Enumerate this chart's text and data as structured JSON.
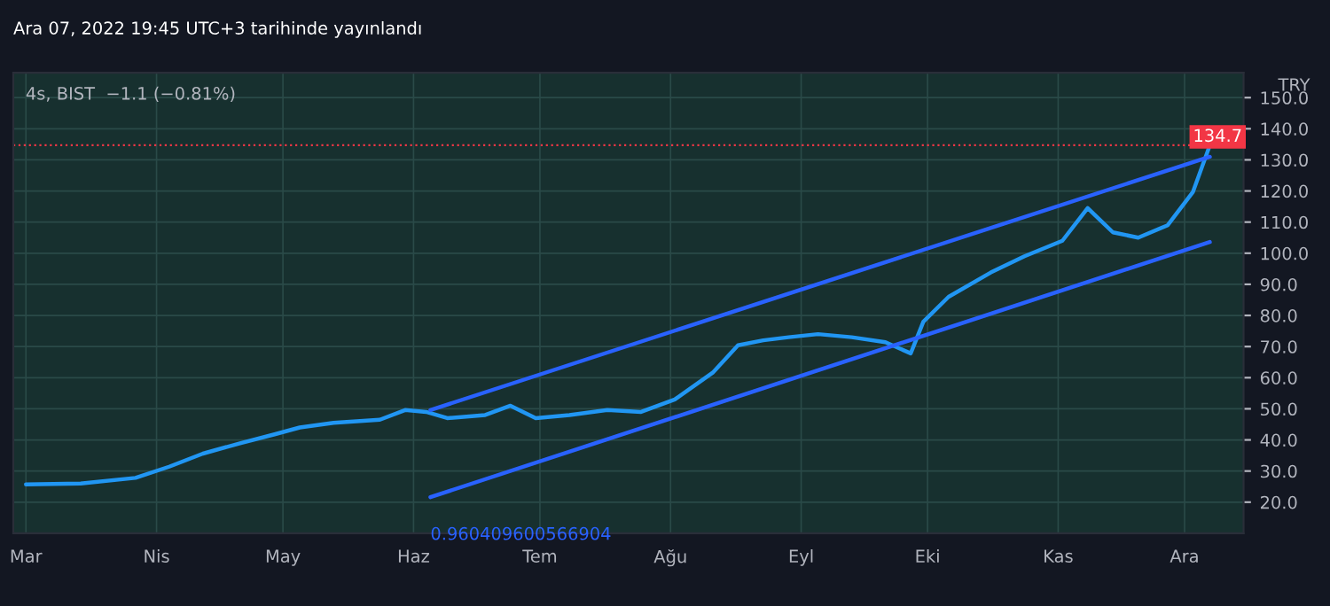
{
  "chart_data": {
    "type": "line",
    "title": "4s, BIST  −1.1 (−0.81%)",
    "subtitle": "Ara 07, 2022 19:45 UTC+3 tarihinde yayınlandı",
    "ylabel": "TRY",
    "series": [
      {
        "color": "#2196f3",
        "x": [
          "2022-03-01",
          "2022-03-14",
          "2022-03-27",
          "2022-04-04",
          "2022-04-12",
          "2022-04-21",
          "2022-04-29",
          "2022-05-05",
          "2022-05-13",
          "2022-05-24",
          "2022-05-30",
          "2022-06-04",
          "2022-06-09",
          "2022-06-18",
          "2022-06-24",
          "2022-06-30",
          "2022-07-08",
          "2022-07-17",
          "2022-07-25",
          "2022-08-02",
          "2022-08-11",
          "2022-08-17",
          "2022-08-23",
          "2022-08-29",
          "2022-09-05",
          "2022-09-13",
          "2022-09-21",
          "2022-09-27",
          "2022-09-30",
          "2022-10-06",
          "2022-10-16",
          "2022-10-24",
          "2022-11-02",
          "2022-11-08",
          "2022-11-14",
          "2022-11-20",
          "2022-11-27",
          "2022-12-03",
          "2022-12-07"
        ],
        "values": [
          25.7,
          26,
          27.8,
          31.4,
          35.6,
          39,
          41.8,
          44,
          45.5,
          46.5,
          49.6,
          49,
          47,
          48,
          51,
          47,
          48,
          49.6,
          49,
          53,
          61.6,
          70.4,
          72,
          73,
          74,
          73,
          71.4,
          67.8,
          78,
          86,
          93.8,
          99,
          104,
          114.5,
          106.7,
          105,
          109,
          119.7,
          134.7
        ]
      },
      {
        "type": "line",
        "color": "#2962ff",
        "x": [
          "2022-06-05",
          "2022-12-07"
        ],
        "values": [
          49.6,
          131
        ]
      },
      {
        "type": "line",
        "color": "#2962ff",
        "x": [
          "2022-06-05",
          "2022-12-07"
        ],
        "values": [
          21.6,
          103.6
        ]
      }
    ],
    "xlim": [
      "2022-02-26",
      "2022-12-15"
    ],
    "xticks": [
      {
        "value": "2022-03-01",
        "label": "Mar"
      },
      {
        "value": "2022-04-01",
        "label": "Nis"
      },
      {
        "value": "2022-05-01",
        "label": "May"
      },
      {
        "value": "2022-06-01",
        "label": "Haz"
      },
      {
        "value": "2022-07-01",
        "label": "Tem"
      },
      {
        "value": "2022-08-01",
        "label": "Ağu"
      },
      {
        "value": "2022-09-01",
        "label": "Eyl"
      },
      {
        "value": "2022-10-01",
        "label": "Eki"
      },
      {
        "value": "2022-11-01",
        "label": "Kas"
      },
      {
        "value": "2022-12-01",
        "label": "Ara"
      }
    ],
    "ylim": [
      10,
      158
    ],
    "yticks": [
      {
        "value": 20,
        "label": "20.0"
      },
      {
        "value": 30,
        "label": "30.0"
      },
      {
        "value": 40,
        "label": "40.0"
      },
      {
        "value": 50,
        "label": "50.0"
      },
      {
        "value": 60,
        "label": "60.0"
      },
      {
        "value": 70,
        "label": "70.0"
      },
      {
        "value": 80,
        "label": "80.0"
      },
      {
        "value": 90,
        "label": "90.0"
      },
      {
        "value": 100,
        "label": "100.0"
      },
      {
        "value": 110,
        "label": "110.0"
      },
      {
        "value": 120,
        "label": "120.0"
      },
      {
        "value": 130,
        "label": "130.0"
      },
      {
        "value": 140,
        "label": "140.0"
      },
      {
        "value": 150,
        "label": "150.0"
      }
    ],
    "ref_lines": [
      {
        "axis": "y",
        "value": 134.7,
        "label": "134.7",
        "color": "#f23645",
        "line_style": "dotted"
      }
    ],
    "annotations": [
      {
        "text": "0.960409600566904",
        "x": "2022-06-05",
        "y": 21.6
      }
    ],
    "grid": true,
    "legend": false
  }
}
